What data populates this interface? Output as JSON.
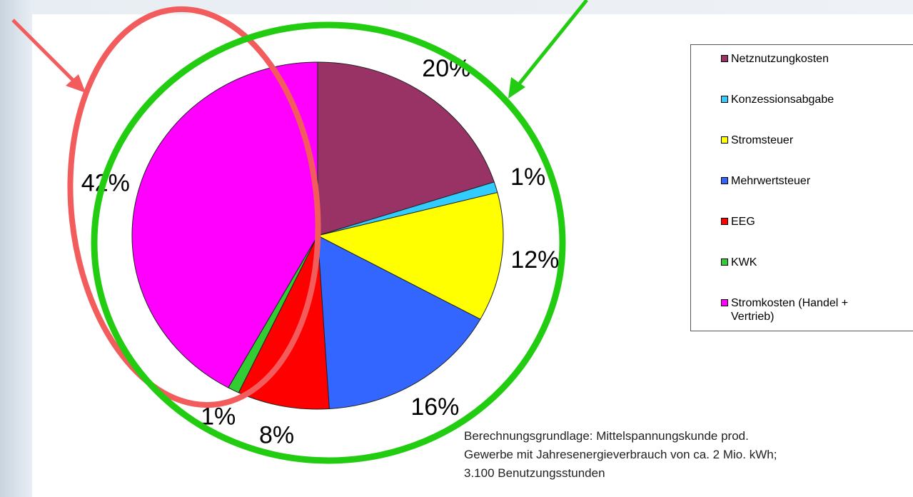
{
  "chart_data": {
    "type": "pie",
    "categories": [
      "Netznutzungkosten",
      "Konzessionsabgabe",
      "Stromsteuer",
      "Mehrwertsteuer",
      "EEG",
      "KWK",
      "Stromkosten (Handel + Vertrieb)"
    ],
    "values": [
      20,
      1,
      12,
      16,
      8,
      1,
      42
    ],
    "value_labels": [
      "20%",
      "1%",
      "12%",
      "16%",
      "8%",
      "1%",
      "42%"
    ],
    "colors": [
      "#993366",
      "#33ccff",
      "#ffff00",
      "#3366ff",
      "#ff0000",
      "#33cc33",
      "#ff00ff"
    ],
    "legend": "right",
    "footnote": [
      "Berechnungsgrundlage: Mittelspannungskunde prod.",
      "Gewerbe mit Jahresenergieverbrauch von ca. 2 Mio. kWh;",
      "3.100 Benutzungsstunden"
    ]
  }
}
